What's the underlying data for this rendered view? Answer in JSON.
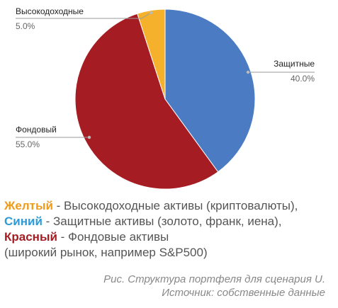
{
  "chart_data": {
    "type": "pie",
    "slices": [
      {
        "label": "Защитные",
        "value": 40.0,
        "pct_text": "40.0%",
        "color": "#4a7bc3"
      },
      {
        "label": "Фондовый",
        "value": 55.0,
        "pct_text": "55.0%",
        "color": "#a61c23"
      },
      {
        "label": "Высокодоходные",
        "value": 5.0,
        "pct_text": "5.0%",
        "color": "#f5b12b"
      }
    ]
  },
  "legend": {
    "yellow": {
      "keyword": "Желтый",
      "text": " - Высокодоходные активы (криптовалюты),",
      "color": "#f09a1a"
    },
    "blue": {
      "keyword": "Синий",
      "text": " - Защитные активы (золото, франк, иена),",
      "color": "#2e9bd6"
    },
    "red": {
      "keyword": "Красный",
      "text": " - Фондовые активы",
      "color": "#a61c23"
    },
    "red_continued": "(широкий рынок, например S&P500)"
  },
  "caption": {
    "line1": "Рис. Структура портфеля для сценария U.",
    "line2": "Источник: собственные данные"
  }
}
